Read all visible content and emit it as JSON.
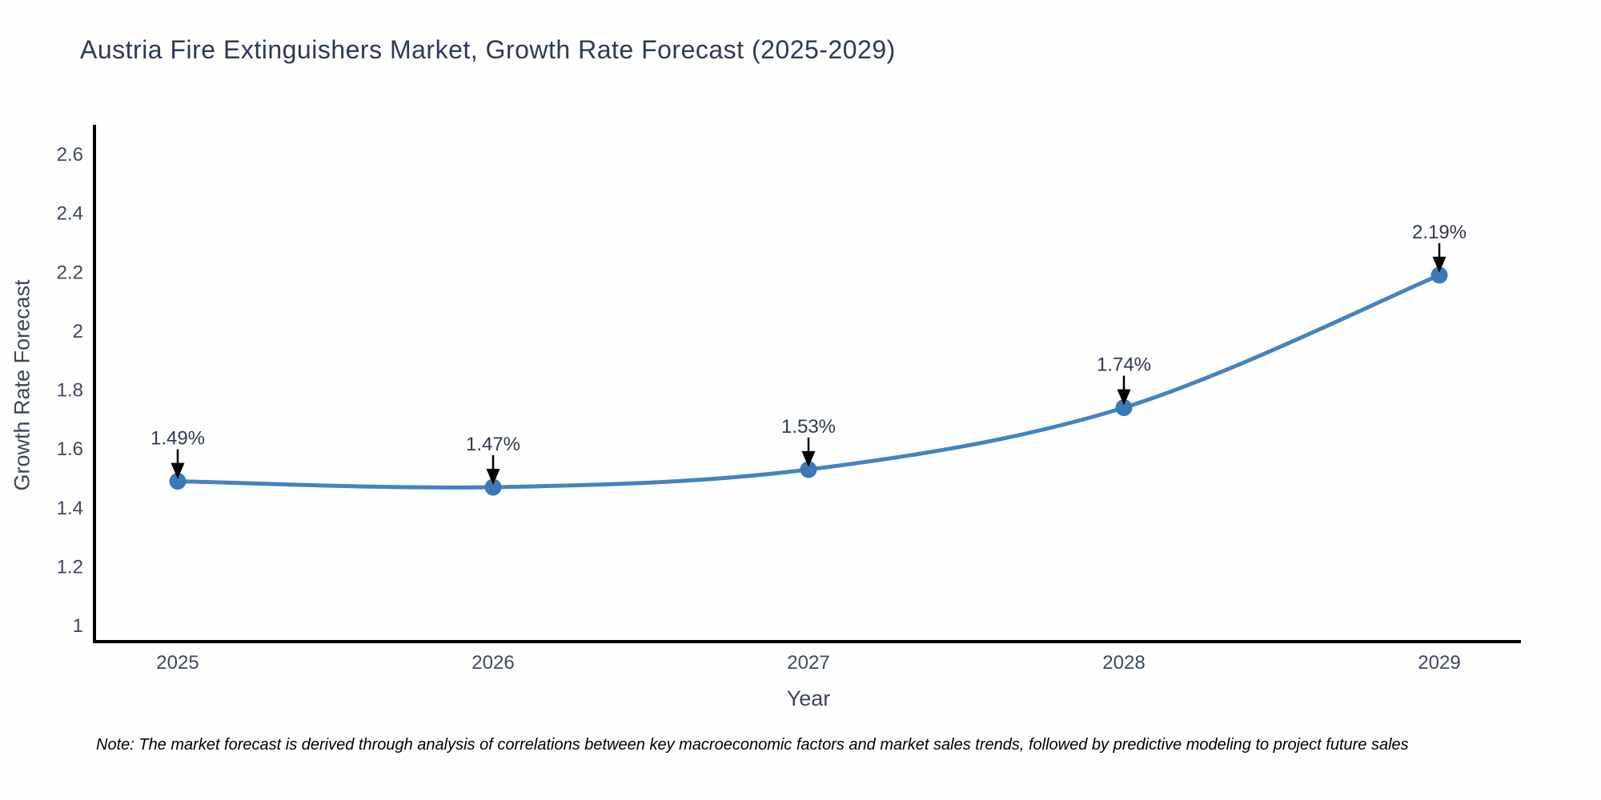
{
  "page": {
    "note": "Note: The market forecast is derived through analysis of correlations between key macroeconomic factors and market sales trends, followed by predictive modeling to project future sales"
  },
  "chart_data": {
    "type": "line",
    "title": "Austria Fire Extinguishers Market, Growth Rate Forecast (2025-2029)",
    "xlabel": "Year",
    "ylabel": "Growth Rate Forecast",
    "categories": [
      "2025",
      "2026",
      "2027",
      "2028",
      "2029"
    ],
    "series": [
      {
        "name": "Growth Rate Forecast",
        "values": [
          1.49,
          1.47,
          1.53,
          1.74,
          2.19
        ],
        "point_labels": [
          "1.49%",
          "1.47%",
          "1.53%",
          "1.74%",
          "2.19%"
        ]
      }
    ],
    "ytick_labels": [
      "1",
      "1.2",
      "1.4",
      "1.6",
      "1.8",
      "2",
      "2.2",
      "2.4",
      "2.6"
    ],
    "ylim": [
      0.95,
      2.7
    ],
    "line_shape": "spline",
    "grid": false,
    "legend_position": "none",
    "annotations_style": "black-down-arrow-to-point",
    "colors": {
      "line": "#4483be",
      "marker": "#3a79b6",
      "annotation_arrow": "#000000",
      "annotation_text": "#2f3a4e",
      "axis_line": "#000000",
      "tick_label": "#3d4961",
      "title": "#2c3a56",
      "axis_title": "#3b4559",
      "note_text": "#000000"
    }
  }
}
